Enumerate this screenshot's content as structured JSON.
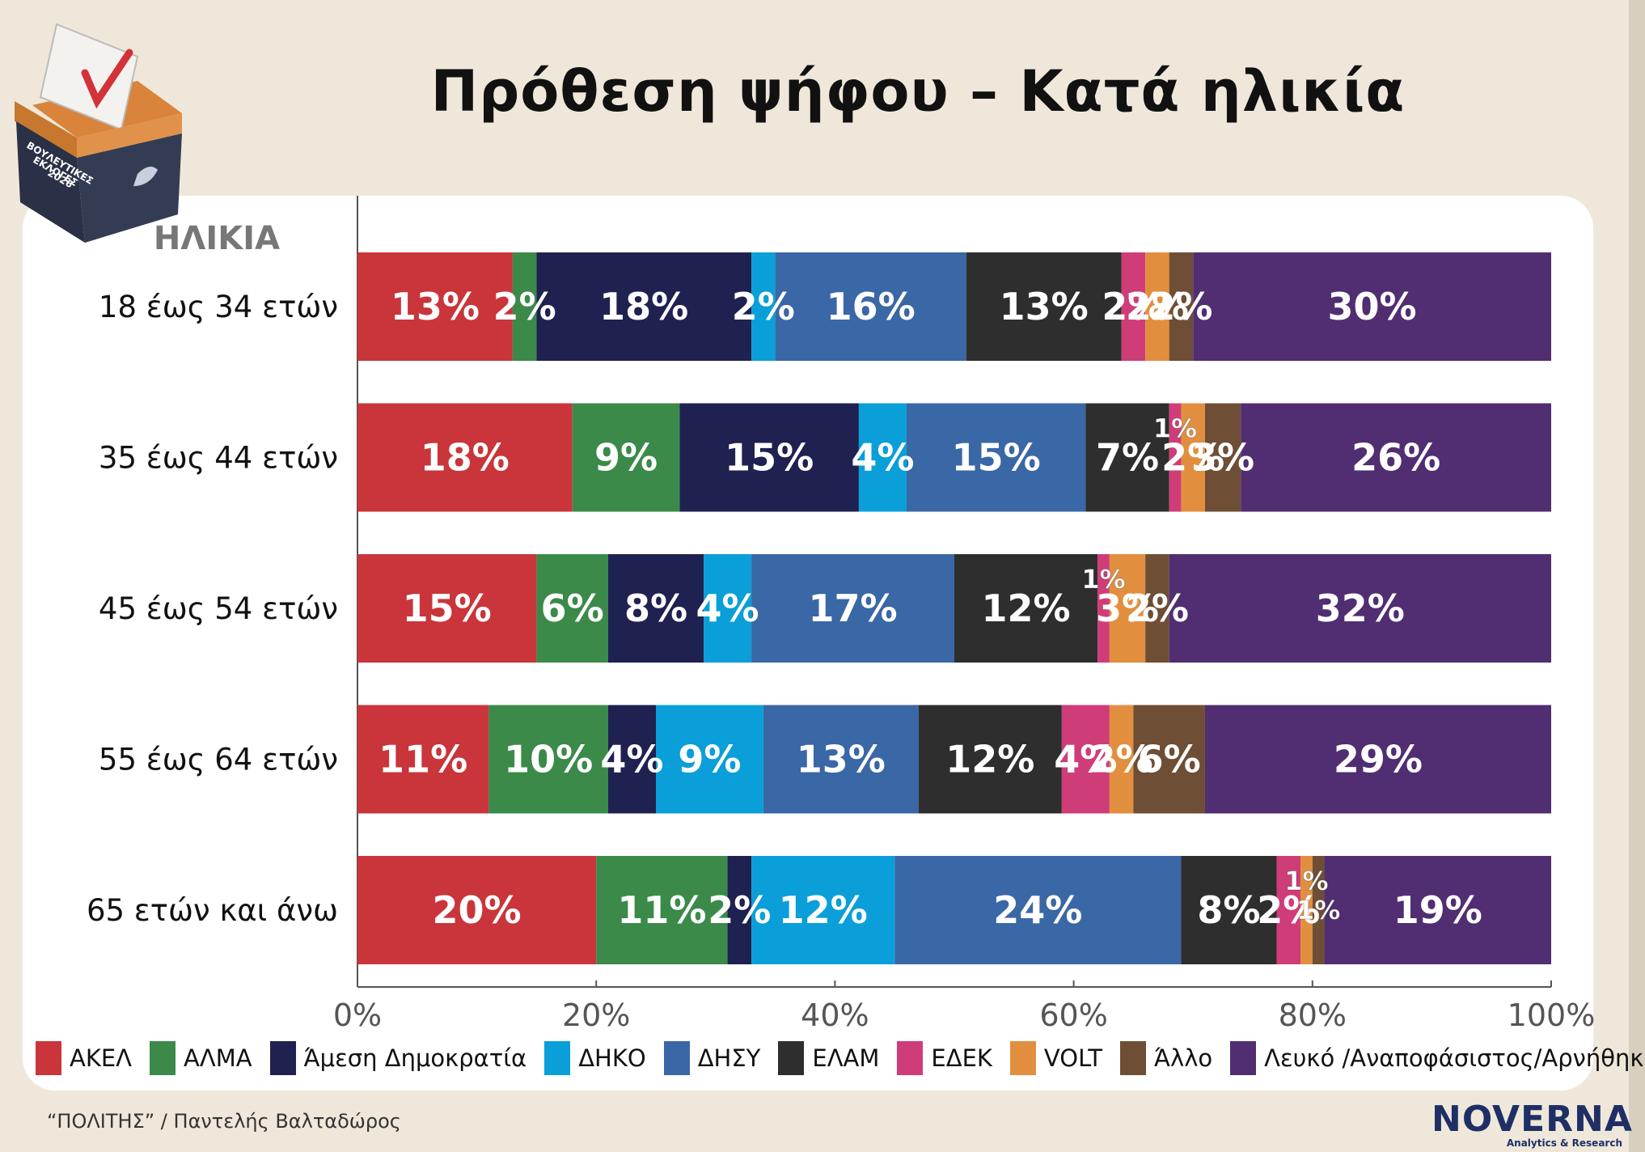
{
  "title": "Πρόθεση ψήφου – Κατά ηλικία",
  "axis_heading": "ΗΛΙΚΙΑ",
  "ballot_box_label": [
    "ΒΟΥΛΕΥΤΙΚΕΣ",
    "ΕΚΛΟΓΕΣ",
    "2026"
  ],
  "source": "“ΠΟΛΙΤΗΣ” / Παντελής Βαλταδώρος",
  "logo": {
    "name": "NOVERNA",
    "tagline": "Analytics & Research"
  },
  "colors": {
    "background": "#efe8da",
    "card": "#ffffff",
    "text": "#111111"
  },
  "chart_data": {
    "type": "bar",
    "orientation": "horizontal",
    "stacked": true,
    "title": "Πρόθεση ψήφου – Κατά ηλικία",
    "ylabel": "ΗΛΙΚΙΑ",
    "xlabel": "",
    "xlim": [
      0,
      100
    ],
    "x_ticks": [
      "0%",
      "20%",
      "40%",
      "60%",
      "80%",
      "100%"
    ],
    "x_tick_values": [
      0,
      20,
      40,
      60,
      80,
      100
    ],
    "grid": false,
    "legend_position": "bottom",
    "categories": [
      "18 έως 34 ετών",
      "35 έως 44 ετών",
      "45 έως 54 ετών",
      "55 έως 64 ετών",
      "65 ετών και άνω"
    ],
    "series": [
      {
        "name": "ΑΚΕΛ",
        "color": "#c9353a",
        "values": [
          13,
          18,
          15,
          11,
          20
        ]
      },
      {
        "name": "ΑΛΜΑ",
        "color": "#3b8a4a",
        "values": [
          2,
          9,
          6,
          10,
          11
        ]
      },
      {
        "name": "Άμεση Δημοκρατία",
        "color": "#1f2150",
        "values": [
          18,
          15,
          8,
          4,
          2
        ]
      },
      {
        "name": "ΔΗΚΟ",
        "color": "#0a9fd8",
        "values": [
          2,
          4,
          4,
          9,
          12
        ]
      },
      {
        "name": "ΔΗΣΥ",
        "color": "#3a67a5",
        "values": [
          16,
          15,
          17,
          13,
          24
        ]
      },
      {
        "name": "ΕΛΑΜ",
        "color": "#2e2e2e",
        "values": [
          13,
          7,
          12,
          12,
          8
        ]
      },
      {
        "name": "ΕΔΕΚ",
        "color": "#cf3d78",
        "values": [
          2,
          1,
          1,
          4,
          2
        ]
      },
      {
        "name": "VOLT",
        "color": "#e18f3f",
        "values": [
          2,
          2,
          3,
          2,
          1
        ]
      },
      {
        "name": "Άλλο",
        "color": "#6e4e34",
        "values": [
          2,
          3,
          2,
          6,
          1
        ]
      },
      {
        "name": "Λευκό /Αναποφάσιστος/Αρνήθηκε",
        "color": "#512d72",
        "values": [
          30,
          26,
          32,
          29,
          19
        ]
      }
    ],
    "value_suffix": "%"
  }
}
